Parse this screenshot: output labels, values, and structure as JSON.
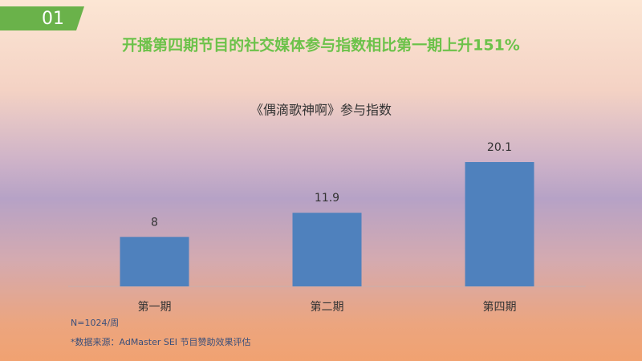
{
  "badge": "01",
  "headline": "开播第四期节目的社交媒体参与指数相比第一期上升151%",
  "chart_data": {
    "type": "bar",
    "title": "《偶滴歌神啊》参与指数",
    "categories": [
      "第一期",
      "第二期",
      "第四期"
    ],
    "values": [
      8,
      11.9,
      20.1
    ],
    "color": "#4f81bd"
  },
  "notes": [
    "N=1024/周",
    "*数据来源：AdMaster SEI 节目赞助效果评估"
  ]
}
